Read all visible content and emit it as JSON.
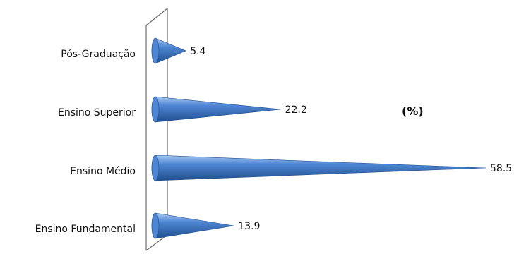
{
  "chart_data": {
    "type": "bar",
    "orientation": "horizontal",
    "bar_shape": "cone",
    "categories": [
      "Pós-Graduação",
      "Ensino Superior",
      "Ensino Médio",
      "Ensino Fundamental"
    ],
    "values": [
      5.4,
      22.2,
      58.5,
      13.9
    ],
    "value_labels": [
      "5.4",
      "22.2",
      "58.5",
      "13.9"
    ],
    "unit_annotation": "(%)",
    "title": "",
    "xlim": [
      0,
      60
    ],
    "grid": false,
    "legend": "none",
    "colors": {
      "bar_dark": "#1f4e8c",
      "bar_mid": "#4f86d4",
      "bar_light": "#a9c8f0",
      "axis": "#6b6b6b"
    }
  }
}
